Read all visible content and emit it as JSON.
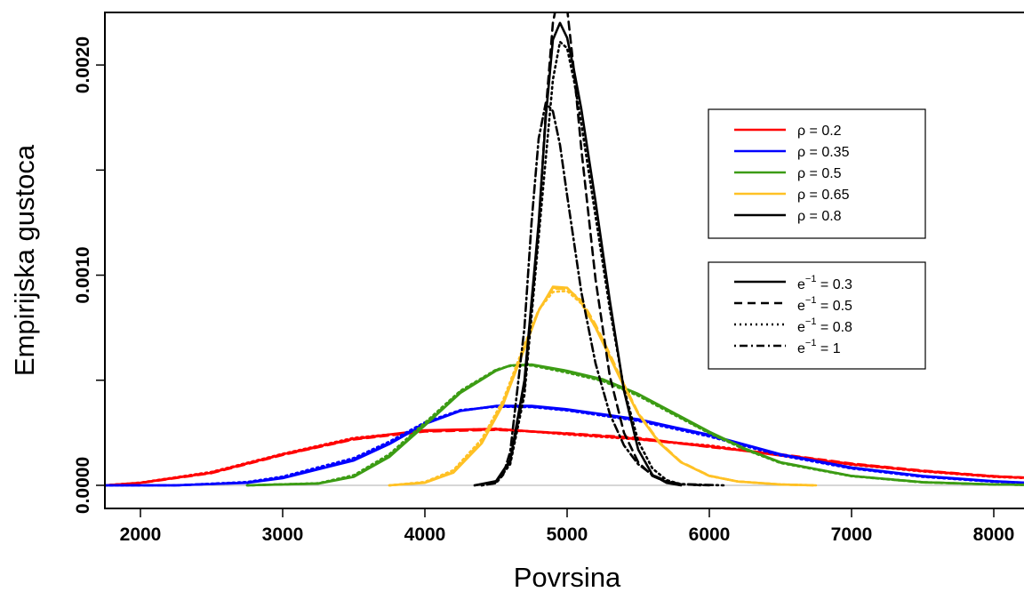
{
  "chart_data": {
    "type": "line",
    "title": "",
    "xlabel": "Povrsina",
    "ylabel": "Empirijska gustoca",
    "xlim": [
      1750,
      8250
    ],
    "ylim": [
      -0.00011,
      0.00225
    ],
    "x_ticks": [
      2000,
      3000,
      4000,
      5000,
      6000,
      7000,
      8000
    ],
    "x_tick_labels": [
      "2000",
      "3000",
      "4000",
      "5000",
      "6000",
      "7000",
      "8000"
    ],
    "y_ticks": [
      0.0,
      0.0005,
      0.001,
      0.0015,
      0.002
    ],
    "y_tick_labels": [
      "0.0000",
      "",
      "0.0010",
      "",
      "0.0020"
    ],
    "zero_line": true,
    "rho_legend": {
      "position": "top-right",
      "entries": [
        {
          "label": "ρ = 0.2",
          "color": "#ff0000"
        },
        {
          "label": "ρ = 0.35",
          "color": "#0000ff"
        },
        {
          "label": "ρ = 0.5",
          "color": "#3c9c14"
        },
        {
          "label": "ρ = 0.65",
          "color": "#ffc125"
        },
        {
          "label": "ρ = 0.8",
          "color": "#000000"
        }
      ]
    },
    "e_legend": {
      "position": "right",
      "entries": [
        {
          "base": "e",
          "sup": "−1",
          "rest": " = 0.3",
          "dash": "solid"
        },
        {
          "base": "e",
          "sup": "−1",
          "rest": " = 0.5",
          "dash": "dashed"
        },
        {
          "base": "e",
          "sup": "−1",
          "rest": " = 0.8",
          "dash": "dotted"
        },
        {
          "base": "e",
          "sup": "−1",
          "rest": " = 1",
          "dash": "dotdash"
        }
      ]
    },
    "series": [
      {
        "rho": 0.2,
        "color": "#ff0000",
        "e_inv": 0.3,
        "dash": "solid",
        "x": [
          1750,
          2000,
          2500,
          3000,
          3500,
          4000,
          4500,
          5000,
          5500,
          6000,
          6500,
          7000,
          7500,
          8000,
          8250
        ],
        "y": [
          0.0,
          1.2e-05,
          6e-05,
          0.000148,
          0.000222,
          0.000262,
          0.000268,
          0.000245,
          0.000222,
          0.000186,
          0.000142,
          0.0001,
          6.8e-05,
          4.2e-05,
          3.5e-05
        ]
      },
      {
        "rho": 0.2,
        "color": "#ff0000",
        "e_inv": 0.5,
        "dash": "dashed",
        "x": [
          1750,
          2000,
          2500,
          3000,
          3500,
          4000,
          4500,
          5000,
          5500,
          6000,
          6500,
          7000,
          7500,
          8000,
          8250
        ],
        "y": [
          0.0,
          1.1e-05,
          5.8e-05,
          0.000144,
          0.000218,
          0.000256,
          0.000264,
          0.000248,
          0.000226,
          0.000182,
          0.000148,
          0.000104,
          7e-05,
          4.4e-05,
          3.6e-05
        ]
      },
      {
        "rho": 0.2,
        "color": "#ff0000",
        "e_inv": 0.8,
        "dash": "dotted",
        "x": [
          1750,
          2000,
          2500,
          3000,
          3500,
          4000,
          4500,
          5000,
          5500,
          6000,
          6500,
          7000,
          7500,
          8000,
          8250
        ],
        "y": [
          0.0,
          1.3e-05,
          6.4e-05,
          0.00015,
          0.000226,
          0.000258,
          0.00027,
          0.000242,
          0.000218,
          0.00019,
          0.000144,
          9.8e-05,
          6.6e-05,
          4e-05,
          3.4e-05
        ]
      },
      {
        "rho": 0.2,
        "color": "#ff0000",
        "e_inv": 1,
        "dash": "dotdash",
        "x": [
          1750,
          2000,
          2500,
          3000,
          3500,
          4000,
          4500,
          5000,
          5500,
          6000,
          6500,
          7000,
          7500,
          8000,
          8250
        ],
        "y": [
          0.0,
          1.2e-05,
          6.2e-05,
          0.000146,
          0.00022,
          0.00026,
          0.000266,
          0.000246,
          0.00022,
          0.000184,
          0.000146,
          0.000102,
          6.8e-05,
          4.3e-05,
          3.5e-05
        ]
      },
      {
        "rho": 0.35,
        "color": "#0000ff",
        "e_inv": 0.3,
        "dash": "solid",
        "x": [
          1750,
          2250,
          2750,
          3000,
          3500,
          3750,
          4000,
          4250,
          4500,
          4750,
          5000,
          5500,
          6000,
          6500,
          7000,
          7500,
          8000,
          8250
        ],
        "y": [
          0.0,
          0.0,
          1.2e-05,
          3.4e-05,
          0.000118,
          0.000196,
          0.000292,
          0.000354,
          0.000378,
          0.000378,
          0.000362,
          0.000314,
          0.00024,
          0.000148,
          8.5e-05,
          4.5e-05,
          2e-05,
          1.2e-05
        ]
      },
      {
        "rho": 0.35,
        "color": "#0000ff",
        "e_inv": 0.5,
        "dash": "dashed",
        "x": [
          1750,
          2250,
          2750,
          3000,
          3500,
          3750,
          4000,
          4250,
          4500,
          4750,
          5000,
          5500,
          6000,
          6500,
          7000,
          7500,
          8000,
          8250
        ],
        "y": [
          0.0,
          0.0,
          1.4e-05,
          3.8e-05,
          0.000124,
          0.000202,
          0.000296,
          0.000356,
          0.000376,
          0.000374,
          0.000358,
          0.00031,
          0.000236,
          0.000146,
          8.2e-05,
          4.2e-05,
          1.8e-05,
          1.1e-05
        ]
      },
      {
        "rho": 0.35,
        "color": "#0000ff",
        "e_inv": 0.8,
        "dash": "dotted",
        "x": [
          1750,
          2250,
          2750,
          3000,
          3500,
          3750,
          4000,
          4250,
          4500,
          4750,
          5000,
          5500,
          6000,
          6500,
          7000,
          7500,
          8000,
          8250
        ],
        "y": [
          0.0,
          0.0,
          1.6e-05,
          4.2e-05,
          0.00013,
          0.000208,
          0.0003,
          0.000358,
          0.000374,
          0.000372,
          0.000356,
          0.000306,
          0.000232,
          0.000142,
          8e-05,
          4e-05,
          1.7e-05,
          1e-05
        ]
      },
      {
        "rho": 0.35,
        "color": "#0000ff",
        "e_inv": 1,
        "dash": "dotdash",
        "x": [
          1750,
          2250,
          2750,
          3000,
          3500,
          3750,
          4000,
          4250,
          4500,
          4750,
          5000,
          5500,
          6000,
          6500,
          7000,
          7500,
          8000,
          8250
        ],
        "y": [
          0.0,
          0.0,
          1.3e-05,
          3.6e-05,
          0.000122,
          0.0002,
          0.000294,
          0.000355,
          0.000377,
          0.000376,
          0.00036,
          0.000312,
          0.000238,
          0.000147,
          8.3e-05,
          4.3e-05,
          1.9e-05,
          1.1e-05
        ]
      },
      {
        "rho": 0.5,
        "color": "#3c9c14",
        "e_inv": 0.3,
        "dash": "solid",
        "x": [
          2750,
          3250,
          3500,
          3750,
          4000,
          4250,
          4500,
          4600,
          4750,
          5000,
          5250,
          5500,
          5750,
          6000,
          6250,
          6500,
          7000,
          7500,
          8000,
          8250
        ],
        "y": [
          0.0,
          8e-06,
          4e-05,
          0.000135,
          0.000285,
          0.00044,
          0.000545,
          0.00057,
          0.000575,
          0.000545,
          0.000505,
          0.000435,
          0.000345,
          0.000255,
          0.000175,
          0.00011,
          4.5e-05,
          1.5e-05,
          4e-06,
          2e-06
        ]
      },
      {
        "rho": 0.5,
        "color": "#3c9c14",
        "e_inv": 0.5,
        "dash": "dashed",
        "x": [
          2750,
          3250,
          3500,
          3750,
          4000,
          4250,
          4500,
          4600,
          4750,
          5000,
          5250,
          5500,
          5750,
          6000,
          6250,
          6500,
          7000,
          7500,
          8000,
          8250
        ],
        "y": [
          0.0,
          9e-06,
          4.4e-05,
          0.000142,
          0.000292,
          0.000446,
          0.000548,
          0.00057,
          0.000572,
          0.00054,
          0.0005,
          0.00043,
          0.00034,
          0.00025,
          0.000172,
          0.000108,
          4.4e-05,
          1.4e-05,
          4e-06,
          2e-06
        ]
      },
      {
        "rho": 0.5,
        "color": "#3c9c14",
        "e_inv": 0.8,
        "dash": "dotted",
        "x": [
          2750,
          3250,
          3500,
          3750,
          4000,
          4250,
          4500,
          4600,
          4750,
          5000,
          5250,
          5500,
          5750,
          6000,
          6250,
          6500,
          7000,
          7500,
          8000,
          8250
        ],
        "y": [
          0.0,
          1e-05,
          4.8e-05,
          0.000148,
          0.000298,
          0.00045,
          0.00055,
          0.000568,
          0.00057,
          0.000536,
          0.000496,
          0.000426,
          0.000336,
          0.000248,
          0.00017,
          0.000106,
          4.3e-05,
          1.4e-05,
          4e-06,
          2e-06
        ]
      },
      {
        "rho": 0.5,
        "color": "#3c9c14",
        "e_inv": 1,
        "dash": "dotdash",
        "x": [
          2750,
          3250,
          3500,
          3750,
          4000,
          4250,
          4500,
          4600,
          4750,
          5000,
          5250,
          5500,
          5750,
          6000,
          6250,
          6500,
          7000,
          7500,
          8000,
          8250
        ],
        "y": [
          0.0,
          9e-06,
          4.2e-05,
          0.000138,
          0.000288,
          0.000443,
          0.000547,
          0.00057,
          0.000574,
          0.000542,
          0.000502,
          0.000432,
          0.000342,
          0.000252,
          0.000174,
          0.000109,
          4.5e-05,
          1.5e-05,
          4e-06,
          2e-06
        ]
      },
      {
        "rho": 0.65,
        "color": "#ffc125",
        "e_inv": 0.3,
        "dash": "solid",
        "x": [
          3750,
          4000,
          4200,
          4400,
          4550,
          4700,
          4800,
          4900,
          5000,
          5100,
          5200,
          5300,
          5400,
          5500,
          5650,
          5800,
          6000,
          6200,
          6500,
          6750
        ],
        "y": [
          0.0,
          1.2e-05,
          6e-05,
          0.0002,
          0.000385,
          0.00065,
          0.00083,
          0.000945,
          0.00094,
          0.00087,
          0.00075,
          0.00061,
          0.00047,
          0.00034,
          0.0002,
          0.00011,
          4.5e-05,
          1.8e-05,
          4e-06,
          0.0
        ]
      },
      {
        "rho": 0.65,
        "color": "#ffc125",
        "e_inv": 0.5,
        "dash": "dashed",
        "x": [
          3750,
          4000,
          4200,
          4400,
          4550,
          4700,
          4800,
          4900,
          5000,
          5100,
          5200,
          5300,
          5400,
          5500,
          5650,
          5800,
          6000,
          6200,
          6500,
          6750
        ],
        "y": [
          0.0,
          1.4e-05,
          6.6e-05,
          0.00021,
          0.000395,
          0.00066,
          0.000835,
          0.000935,
          0.000935,
          0.00088,
          0.000765,
          0.000625,
          0.00048,
          0.000345,
          0.000205,
          0.000112,
          4.6e-05,
          1.8e-05,
          4e-06,
          0.0
        ]
      },
      {
        "rho": 0.65,
        "color": "#ffc125",
        "e_inv": 0.8,
        "dash": "dotted",
        "x": [
          3750,
          4000,
          4200,
          4400,
          4550,
          4700,
          4800,
          4900,
          5000,
          5100,
          5200,
          5300,
          5400,
          5500,
          5650,
          5800,
          6000,
          6200,
          6500,
          6750
        ],
        "y": [
          0.0,
          1.6e-05,
          7.2e-05,
          0.00022,
          0.000405,
          0.00067,
          0.000835,
          0.00092,
          0.000925,
          0.000865,
          0.00075,
          0.000615,
          0.000475,
          0.000342,
          0.000202,
          0.00011,
          4.5e-05,
          1.8e-05,
          4e-06,
          0.0
        ]
      },
      {
        "rho": 0.65,
        "color": "#ffc125",
        "e_inv": 1,
        "dash": "dotdash",
        "x": [
          3750,
          4000,
          4200,
          4400,
          4550,
          4700,
          4800,
          4900,
          5000,
          5100,
          5200,
          5300,
          5400,
          5500,
          5650,
          5800,
          6000,
          6200,
          6500,
          6750
        ],
        "y": [
          0.0,
          1.3e-05,
          6.2e-05,
          0.000205,
          0.00039,
          0.000655,
          0.000832,
          0.00094,
          0.000938,
          0.000872,
          0.000755,
          0.000615,
          0.000472,
          0.00034,
          0.000202,
          0.00011,
          4.5e-05,
          1.8e-05,
          4e-06,
          0.0
        ]
      },
      {
        "rho": 0.8,
        "color": "#000000",
        "e_inv": 0.3,
        "dash": "solid",
        "x": [
          4350,
          4500,
          4600,
          4700,
          4800,
          4850,
          4900,
          4950,
          5000,
          5050,
          5100,
          5200,
          5300,
          5400,
          5500,
          5600,
          5700,
          5800
        ],
        "y": [
          0.0,
          2e-05,
          0.00012,
          0.0005,
          0.00125,
          0.00175,
          0.00212,
          0.0022,
          0.00213,
          0.00197,
          0.00179,
          0.00135,
          0.00088,
          0.00045,
          0.00017,
          5e-05,
          1.2e-05,
          0.0
        ]
      },
      {
        "rho": 0.8,
        "color": "#000000",
        "e_inv": 0.5,
        "dash": "dashed",
        "x": [
          4350,
          4500,
          4600,
          4700,
          4800,
          4850,
          4900,
          4950,
          5000,
          5050,
          5100,
          5200,
          5300,
          5400,
          5500,
          5600,
          5700,
          5800,
          6000
        ],
        "y": [
          0.0,
          1.5e-05,
          0.00011,
          0.00046,
          0.00122,
          0.00178,
          0.0022,
          0.00237,
          0.00227,
          0.00196,
          0.0016,
          0.00098,
          0.00052,
          0.00025,
          0.00011,
          4.5e-05,
          1.5e-05,
          5e-06,
          0.0
        ]
      },
      {
        "rho": 0.8,
        "color": "#000000",
        "e_inv": 0.8,
        "dash": "dotted",
        "x": [
          4400,
          4500,
          4600,
          4700,
          4800,
          4900,
          4950,
          5000,
          5050,
          5100,
          5200,
          5300,
          5400,
          5500,
          5600,
          5700,
          5800,
          5950
        ],
        "y": [
          0.0,
          1.2e-05,
          0.0001,
          0.00043,
          0.00118,
          0.00193,
          0.00211,
          0.00208,
          0.00192,
          0.00172,
          0.00128,
          0.00084,
          0.00046,
          0.00021,
          8e-05,
          2.5e-05,
          6e-06,
          0.0
        ]
      },
      {
        "rho": 0.8,
        "color": "#000000",
        "e_inv": 1,
        "dash": "dotdash",
        "x": [
          4400,
          4500,
          4550,
          4600,
          4700,
          4750,
          4800,
          4850,
          4900,
          4950,
          5000,
          5100,
          5200,
          5300,
          5400,
          5500,
          5600,
          5700,
          5800,
          6100
        ],
        "y": [
          0.0,
          1e-05,
          5e-05,
          0.00016,
          0.00075,
          0.00125,
          0.00165,
          0.00182,
          0.00178,
          0.00162,
          0.00138,
          0.00092,
          0.00058,
          0.00034,
          0.00019,
          0.0001,
          5e-05,
          2e-05,
          6e-06,
          0.0
        ]
      }
    ]
  }
}
